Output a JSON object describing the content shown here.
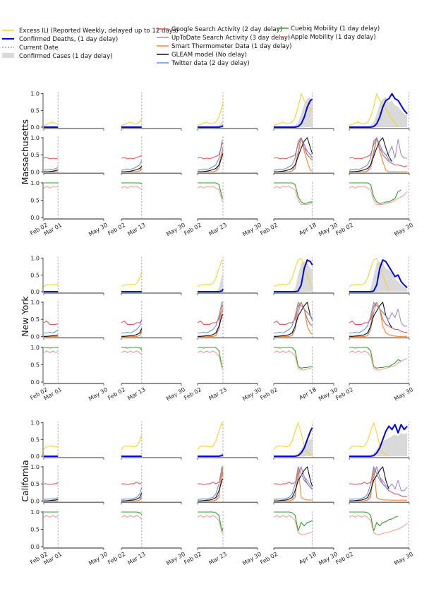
{
  "legend": [
    {
      "label": "Excess ILI (Reported Weekly, delayed up to 12 days)",
      "color": "#f5d327",
      "kind": "line"
    },
    {
      "label": "Confirmed Deaths, (1 day delay)",
      "color": "#0000e0",
      "kind": "thick"
    },
    {
      "label": "Current Date",
      "color": "#999999",
      "kind": "dash"
    },
    {
      "label": "Confirmed Cases (1 day delay)",
      "color": "#d9d9d9",
      "kind": "fill"
    },
    {
      "label": "Google Search Activity (2 day delay)",
      "color": "#d9585a",
      "kind": "line"
    },
    {
      "label": "UpToDate Search Activity (3 day delay)",
      "color": "#a48ad3",
      "kind": "line"
    },
    {
      "label": "Smart Thermometer Data (1 day delay)",
      "color": "#f5862a",
      "kind": "line"
    },
    {
      "label": "GLEAM model (No delay)",
      "color": "#111111",
      "kind": "line"
    },
    {
      "label": "Twitter data (2 day delay)",
      "color": "#6a8fd8",
      "kind": "line"
    },
    {
      "label": "Cuebiq Mobility (1 day delay)",
      "color": "#2ca02c",
      "kind": "line"
    },
    {
      "label": "Apple Mobility (1 day delay)",
      "color": "#f4a09a",
      "kind": "line"
    }
  ],
  "chart_data": {
    "type": "line",
    "x_unit": "days since Feb 02 sampled every 6 days",
    "sample_days": [
      0,
      6,
      12,
      18,
      24,
      30,
      36,
      42,
      48,
      54,
      60,
      66,
      72,
      78,
      84,
      90,
      96,
      102,
      108,
      114
    ],
    "yticks": [
      "0.0",
      "0.5",
      "1.0"
    ],
    "ylim": [
      0,
      1
    ],
    "grid": false,
    "columns": [
      {
        "current_date": "Mar 01",
        "current_day": 28,
        "ticks": [
          "Feb 02",
          "Mar 01",
          "May 30"
        ]
      },
      {
        "current_date": "Mar 13",
        "current_day": 40,
        "ticks": [
          "Feb 02",
          "Mar 13",
          "May 30"
        ]
      },
      {
        "current_date": "Mar 23",
        "current_day": 50,
        "ticks": [
          "Feb 02",
          "Mar 23",
          "May 30"
        ]
      },
      {
        "current_date": "Apr 18",
        "current_day": 76,
        "ticks": [
          "Feb 02",
          "Apr 18",
          "May 30"
        ]
      },
      {
        "current_date": "May 30",
        "current_day": 118,
        "ticks": [
          "Feb 02",
          "May 30"
        ]
      }
    ],
    "states": [
      {
        "name": "Massachusetts",
        "series": {
          "ili": [
            0.05,
            0.08,
            0.12,
            0.15,
            0.1,
            0.1,
            0.15,
            0.3,
            0.6,
            1.0,
            0.8,
            0.7,
            0.55,
            0.4,
            0.25,
            0.12,
            0.02,
            null,
            null,
            null
          ],
          "deaths": [
            0,
            0,
            0,
            0,
            0,
            0,
            0,
            0,
            0.02,
            0.1,
            0.3,
            0.6,
            0.8,
            0.85,
            1.0,
            0.85,
            0.8,
            0.65,
            0.5,
            0.4
          ],
          "cases": [
            0,
            0,
            0,
            0,
            0,
            0,
            0,
            0.05,
            0.15,
            0.4,
            0.7,
            0.85,
            0.9,
            0.75,
            0.8,
            0.65,
            0.6,
            0.5,
            0.4,
            0.35
          ],
          "google": [
            0.4,
            0.42,
            0.38,
            0.4,
            0.38,
            0.42,
            0.45,
            0.5,
            0.8,
            1.0,
            0.7,
            0.5,
            0.4,
            0.3,
            0.25,
            0.2,
            0.2,
            0.18,
            0.15,
            0.18
          ],
          "uptodate": [
            0,
            0,
            0,
            0,
            0,
            0,
            0.02,
            0.1,
            0.5,
            1.0,
            0.7,
            0.6,
            0.5,
            0.55,
            0.75,
            0.4,
            0.95,
            0.5,
            0.4,
            0.4
          ],
          "thermo": [
            0,
            0,
            0,
            0,
            0,
            0,
            0.02,
            0.2,
            0.6,
            1.0,
            0.6,
            0.3,
            0.05,
            0,
            0,
            0,
            0,
            0,
            0,
            0
          ],
          "gleam": [
            0,
            0,
            0.01,
            0.02,
            0.04,
            0.06,
            0.1,
            0.2,
            0.45,
            0.7,
            0.9,
            1.0,
            0.7,
            0.45,
            0.3,
            null,
            null,
            null,
            null,
            null
          ],
          "twitter": [
            0.05,
            0.06,
            0.08,
            0.07,
            0.1,
            0.15,
            0.2,
            0.4,
            0.9,
            1.0,
            0.8,
            0.6,
            0.5,
            0.35,
            0.3,
            null,
            null,
            null,
            null,
            null
          ],
          "cuebiq": [
            1,
            1,
            1,
            1,
            1,
            1,
            1,
            0.95,
            0.6,
            0.45,
            0.4,
            0.42,
            0.45,
            0.45,
            0.5,
            0.55,
            0.75,
            0.8,
            null,
            null
          ],
          "apple": [
            0.85,
            0.9,
            0.85,
            0.9,
            0.88,
            0.9,
            0.85,
            0.8,
            0.5,
            0.38,
            0.38,
            0.38,
            0.4,
            0.42,
            0.45,
            0.5,
            0.55,
            0.6,
            0.65,
            0.75
          ]
        }
      },
      {
        "name": "New York",
        "series": {
          "ili": [
            0.15,
            0.2,
            0.2,
            0.22,
            0.2,
            0.25,
            0.4,
            0.7,
            0.95,
            1.0,
            0.8,
            0.5,
            0.25,
            0.05,
            null,
            null,
            null,
            null,
            null,
            null
          ],
          "deaths": [
            0,
            0,
            0,
            0,
            0,
            0,
            0,
            0,
            0.02,
            0.2,
            0.7,
            0.95,
            0.9,
            0.75,
            0.6,
            0.45,
            0.5,
            0.3,
            0.2,
            0.12
          ],
          "cases": [
            0,
            0,
            0,
            0,
            0,
            0,
            0,
            0.1,
            0.5,
            0.85,
            0.9,
            0.85,
            0.7,
            0.65,
            0.55,
            0.4,
            0.3,
            0.2,
            0.15,
            0.1
          ],
          "google": [
            0.4,
            0.45,
            0.35,
            0.35,
            0.35,
            0.4,
            0.4,
            0.5,
            0.85,
            1.0,
            0.8,
            0.5,
            0.35,
            0.3,
            0.25,
            0.2,
            0.2,
            0.15,
            0.12,
            0.12
          ],
          "uptodate": [
            0,
            0,
            0,
            0,
            0,
            0,
            0.02,
            0.2,
            0.7,
            1.0,
            0.8,
            0.7,
            0.6,
            0.5,
            0.7,
            0.55,
            0.8,
            0.4,
            0.3,
            0.3
          ],
          "thermo": [
            0,
            0,
            0,
            0,
            0,
            0,
            0.02,
            0.3,
            0.9,
            1.0,
            0.8,
            0.3,
            0.1,
            0.05,
            0.02,
            0.01,
            0,
            0,
            0,
            0
          ],
          "gleam": [
            0,
            0,
            0.01,
            0.02,
            0.03,
            0.05,
            0.1,
            0.3,
            0.6,
            0.75,
            0.9,
            1.0,
            0.6,
            0.4,
            0.25,
            null,
            null,
            null,
            null,
            null
          ],
          "twitter": [
            0.1,
            0.1,
            0.12,
            0.1,
            0.15,
            0.2,
            0.3,
            0.6,
            1.0,
            0.9,
            0.8,
            0.7,
            0.6,
            0.4,
            null,
            null,
            null,
            null,
            null,
            null
          ],
          "cuebiq": [
            1,
            1,
            0.98,
            1,
            1,
            1,
            1,
            0.9,
            0.45,
            0.4,
            0.42,
            0.42,
            0.45,
            0.45,
            0.5,
            0.55,
            0.65,
            0.6,
            null,
            null
          ],
          "apple": [
            0.85,
            0.9,
            0.85,
            0.9,
            0.85,
            0.9,
            0.85,
            0.75,
            0.4,
            0.35,
            0.35,
            0.38,
            0.4,
            0.42,
            0.45,
            0.48,
            0.55,
            0.6,
            0.65,
            0.68
          ]
        }
      },
      {
        "name": "California",
        "series": {
          "ili": [
            0.2,
            0.3,
            0.3,
            0.3,
            0.28,
            0.3,
            0.45,
            0.75,
            1.0,
            0.7,
            0.3,
            0.1,
            0.05,
            0,
            null,
            null,
            null,
            null,
            null,
            null
          ],
          "deaths": [
            0,
            0,
            0,
            0,
            0,
            0,
            0,
            0,
            0.02,
            0.1,
            0.25,
            0.5,
            0.75,
            0.9,
            0.8,
            0.95,
            0.7,
            0.95,
            0.8,
            0.9
          ],
          "cases": [
            0,
            0,
            0,
            0,
            0,
            0,
            0,
            0.03,
            0.1,
            0.2,
            0.35,
            0.45,
            0.5,
            0.55,
            0.6,
            0.65,
            0.6,
            0.7,
            0.65,
            0.7
          ],
          "google": [
            0.5,
            0.5,
            0.48,
            0.5,
            0.5,
            0.55,
            0.5,
            0.55,
            0.8,
            1.0,
            0.7,
            0.5,
            0.4,
            0.3,
            0.25,
            0.2,
            0.2,
            0.15,
            0.12,
            0.12
          ],
          "uptodate": [
            0,
            0,
            0,
            0,
            0,
            0,
            0.02,
            0.2,
            0.7,
            1.0,
            0.7,
            0.6,
            0.45,
            0.4,
            0.5,
            0.35,
            0.6,
            0.3,
            0.3,
            0.4
          ],
          "thermo": [
            0,
            0,
            0,
            0,
            0,
            0,
            0.02,
            0.1,
            1.0,
            0.1,
            0.05,
            0.03,
            0.03,
            0.03,
            0.02,
            0.02,
            0.02,
            0.03,
            0.02,
            0.02
          ],
          "gleam": [
            0,
            0,
            0.01,
            0.02,
            0.03,
            0.05,
            0.1,
            0.3,
            0.6,
            0.75,
            0.9,
            1.0,
            0.6,
            0.35,
            null,
            null,
            null,
            null,
            null,
            null
          ],
          "twitter": [
            0.05,
            0.05,
            0.06,
            0.05,
            0.08,
            0.1,
            0.2,
            0.5,
            1.0,
            0.8,
            0.6,
            0.5,
            0.4,
            0.35,
            null,
            null,
            null,
            null,
            null,
            null
          ],
          "cuebiq": [
            1,
            1,
            1,
            1,
            1,
            1,
            0.98,
            0.9,
            0.45,
            0.7,
            0.6,
            0.7,
            0.72,
            0.78,
            0.8,
            0.85,
            0.88,
            null,
            null,
            null
          ],
          "apple": [
            0.85,
            0.9,
            0.85,
            0.9,
            0.85,
            0.9,
            0.85,
            0.75,
            0.4,
            0.35,
            0.35,
            0.38,
            0.4,
            0.42,
            0.45,
            0.48,
            0.5,
            0.55,
            0.6,
            0.68
          ]
        }
      }
    ],
    "panels": [
      {
        "series": [
          "cases",
          "ili",
          "deaths"
        ]
      },
      {
        "series": [
          "google",
          "uptodate",
          "thermo",
          "gleam",
          "twitter"
        ]
      },
      {
        "series": [
          "cuebiq",
          "apple"
        ]
      }
    ],
    "colors": {
      "ili": "#f5d327",
      "deaths": "#0000e0",
      "cases": "#d9d9d9",
      "google": "#d9585a",
      "uptodate": "#a48ad3",
      "thermo": "#f5862a",
      "gleam": "#111111",
      "twitter": "#6a8fd8",
      "cuebiq": "#2ca02c",
      "apple": "#f4a09a",
      "current": "#999999"
    }
  }
}
